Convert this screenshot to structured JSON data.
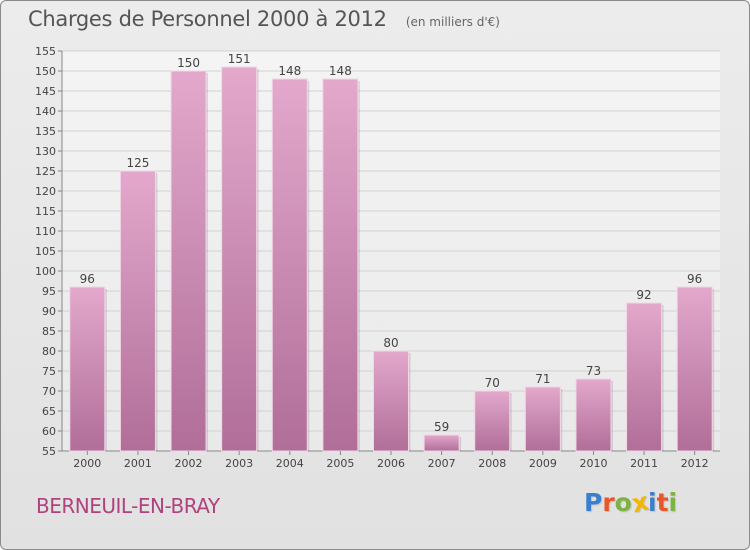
{
  "header": {
    "title": "Charges de Personnel 2000 à 2012",
    "subtitle": "(en milliers d'€)"
  },
  "footer": {
    "commune": "BERNEUIL-EN-BRAY",
    "logo_letters": [
      {
        "char": "P",
        "color": "#3a7fcf"
      },
      {
        "char": "r",
        "color": "#e8562a"
      },
      {
        "char": "o",
        "color": "#7cb342"
      },
      {
        "char": "x",
        "color": "#f2b705"
      },
      {
        "char": "i",
        "color": "#3a7fcf"
      },
      {
        "char": "t",
        "color": "#e8562a"
      },
      {
        "char": "i",
        "color": "#7cb342"
      }
    ]
  },
  "chart_data": {
    "type": "bar",
    "categories": [
      "2000",
      "2001",
      "2002",
      "2003",
      "2004",
      "2005",
      "2006",
      "2007",
      "2008",
      "2009",
      "2010",
      "2011",
      "2012"
    ],
    "values": [
      96,
      125,
      150,
      151,
      148,
      148,
      80,
      59,
      70,
      71,
      73,
      92,
      96
    ],
    "ylim": [
      55,
      155
    ],
    "yticks": [
      55,
      60,
      65,
      70,
      75,
      80,
      85,
      90,
      95,
      100,
      105,
      110,
      115,
      120,
      125,
      130,
      135,
      140,
      145,
      150,
      155
    ],
    "grid": true,
    "bar_color_top": "#e3a8cc",
    "bar_color_bottom": "#b06e98"
  }
}
